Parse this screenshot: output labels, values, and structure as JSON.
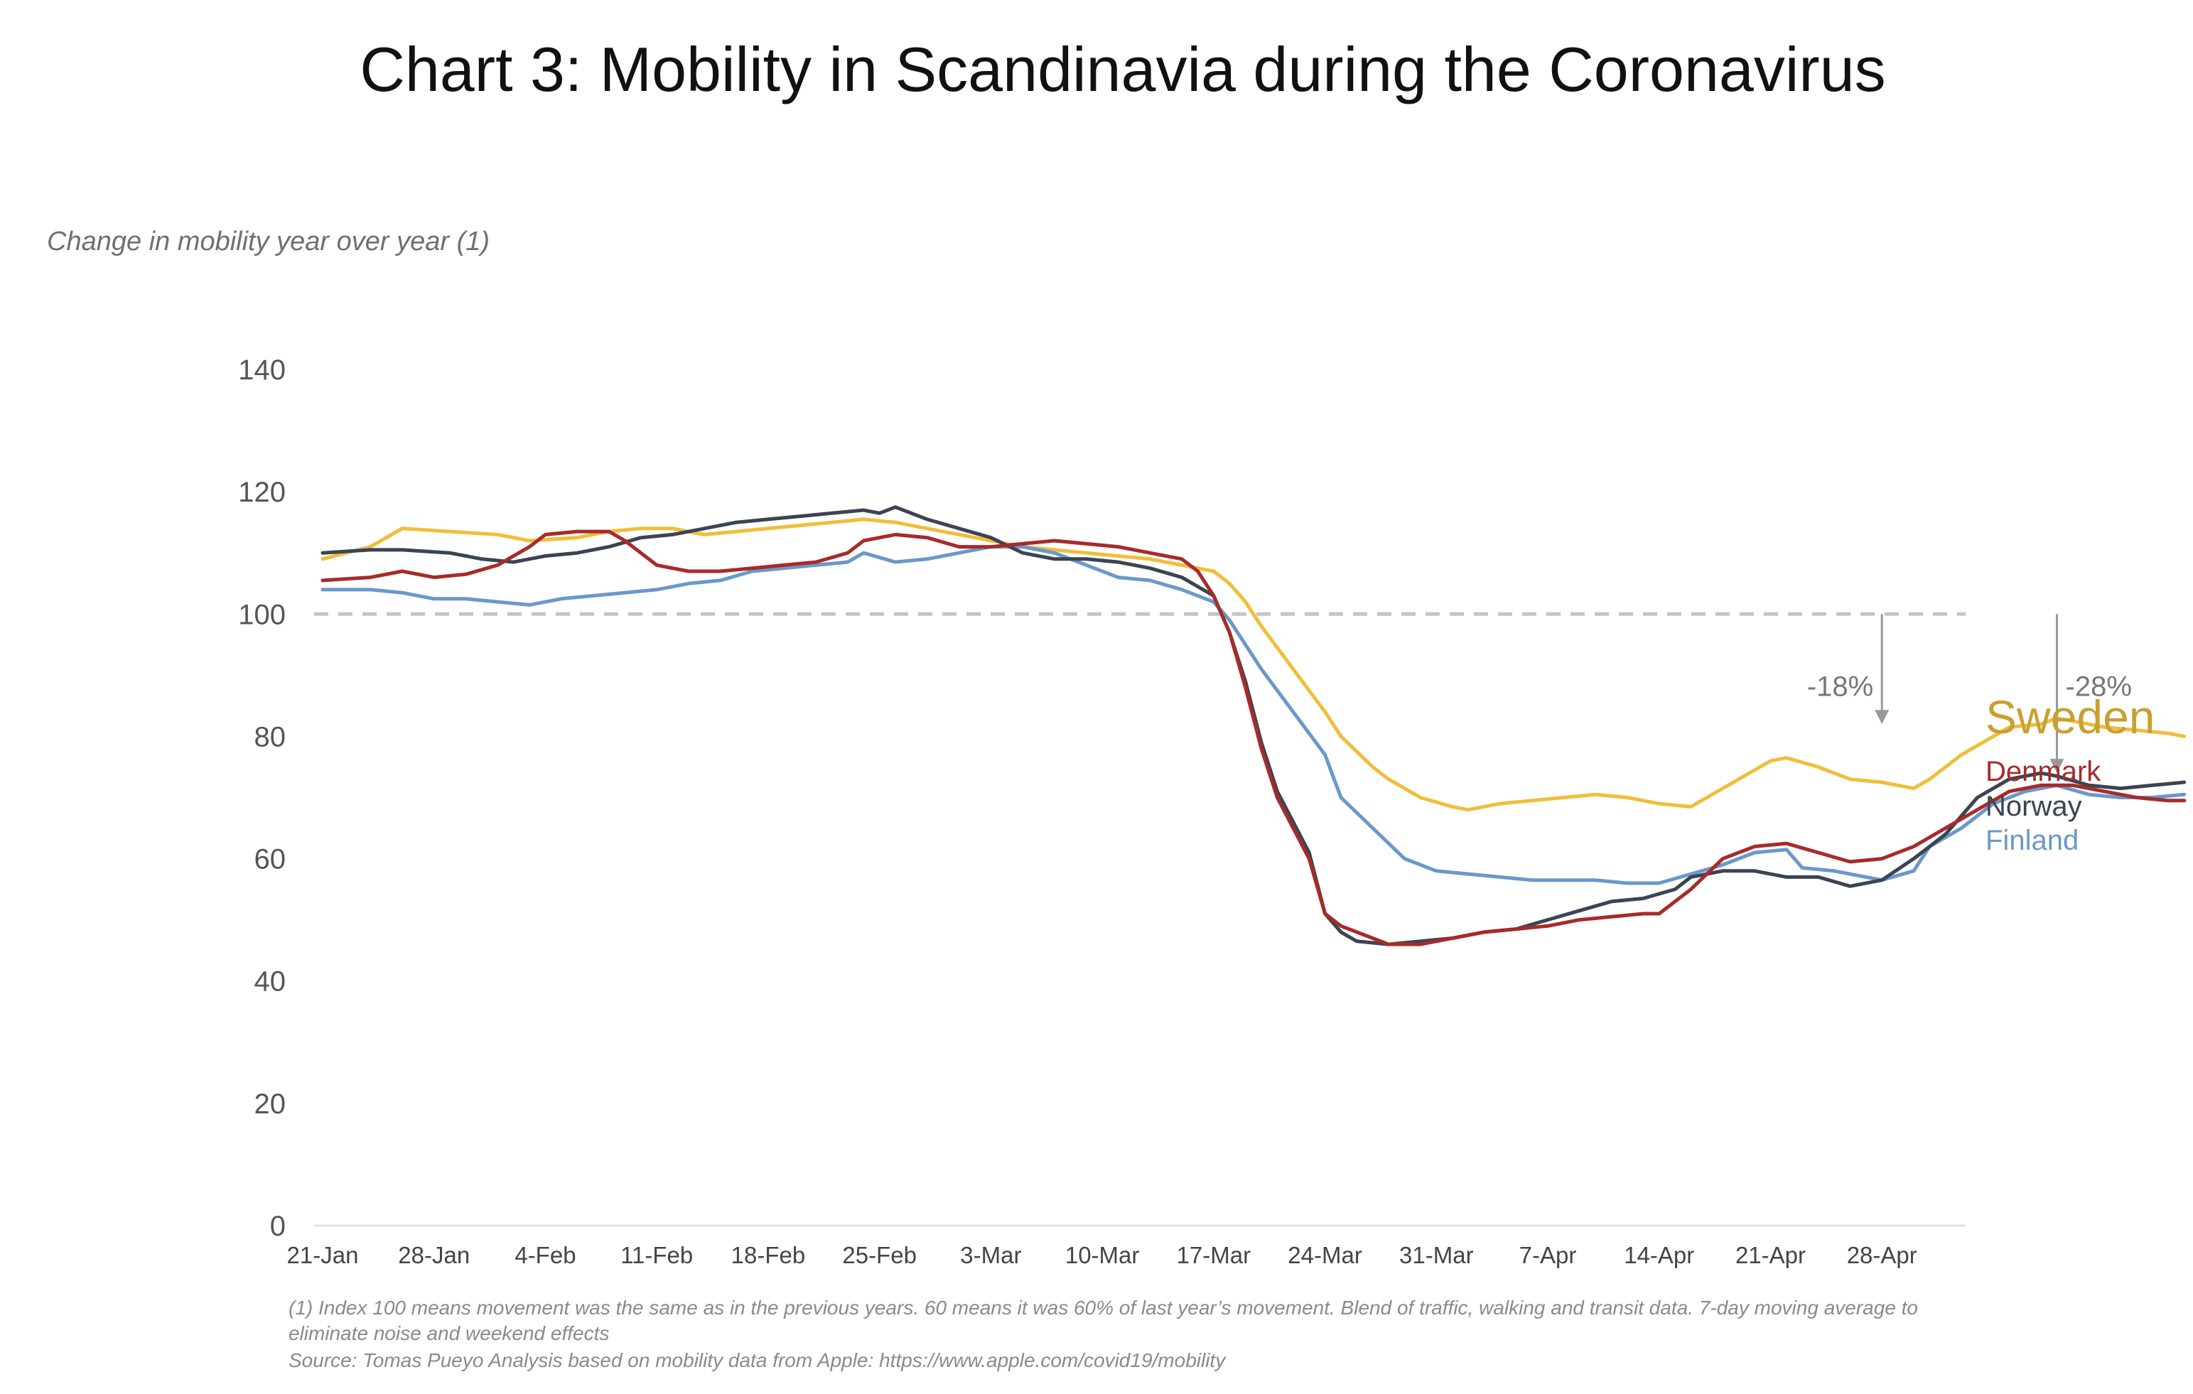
{
  "chart_data": {
    "type": "line",
    "title": "Chart 3: Mobility in Scandinavia during the Coronavirus",
    "ylabel": "Change in mobility year over year (1)",
    "xlabel": "",
    "ylim": [
      0,
      140
    ],
    "yticks": [
      "0",
      "20",
      "40",
      "60",
      "80",
      "100",
      "120",
      "140"
    ],
    "xticks": [
      "21-Jan",
      "28-Jan",
      "4-Feb",
      "11-Feb",
      "18-Feb",
      "25-Feb",
      "3-Mar",
      "10-Mar",
      "17-Mar",
      "24-Mar",
      "31-Mar",
      "7-Apr",
      "14-Apr",
      "21-Apr",
      "28-Apr"
    ],
    "x_range_days": [
      0,
      104
    ],
    "reference_line": 100,
    "series": [
      {
        "name": "Sweden",
        "color": "#F0BE3A",
        "label_color": "#C9A030",
        "points": [
          [
            0,
            109
          ],
          [
            3,
            111
          ],
          [
            5,
            114
          ],
          [
            8,
            113.5
          ],
          [
            11,
            113
          ],
          [
            13,
            112
          ],
          [
            16,
            112.5
          ],
          [
            18,
            113.5
          ],
          [
            20,
            114
          ],
          [
            22,
            114
          ],
          [
            24,
            113
          ],
          [
            26,
            113.5
          ],
          [
            28,
            114
          ],
          [
            30,
            114.5
          ],
          [
            32,
            115
          ],
          [
            34,
            115.5
          ],
          [
            36,
            115
          ],
          [
            38,
            114
          ],
          [
            40,
            113
          ],
          [
            42,
            112
          ],
          [
            44,
            111
          ],
          [
            46,
            110.5
          ],
          [
            48,
            110
          ],
          [
            50,
            109.5
          ],
          [
            52,
            109
          ],
          [
            54,
            108
          ],
          [
            56,
            107
          ],
          [
            57,
            105
          ],
          [
            58,
            102
          ],
          [
            59,
            98
          ],
          [
            61,
            91
          ],
          [
            63,
            84
          ],
          [
            64,
            80
          ],
          [
            66,
            75
          ],
          [
            67,
            73
          ],
          [
            69,
            70
          ],
          [
            71,
            68.5
          ],
          [
            72,
            68
          ],
          [
            74,
            69
          ],
          [
            76,
            69.5
          ],
          [
            78,
            70
          ],
          [
            80,
            70.5
          ],
          [
            82,
            70
          ],
          [
            84,
            69
          ],
          [
            86,
            68.5
          ],
          [
            87,
            70
          ],
          [
            89,
            73
          ],
          [
            91,
            76
          ],
          [
            92,
            76.5
          ],
          [
            94,
            75
          ],
          [
            96,
            73
          ],
          [
            98,
            72.5
          ],
          [
            100,
            71.5
          ],
          [
            101,
            73
          ],
          [
            103,
            77
          ],
          [
            105,
            80
          ],
          [
            106,
            81.5
          ],
          [
            108,
            82
          ],
          [
            109,
            83
          ],
          [
            110,
            82.5
          ],
          [
            112,
            81.5
          ],
          [
            114,
            81
          ],
          [
            116,
            80.5
          ],
          [
            117,
            80
          ]
        ]
      },
      {
        "name": "Denmark",
        "color": "#A82A2A",
        "label_color": "#A82A2A",
        "points": [
          [
            0,
            105.5
          ],
          [
            3,
            106
          ],
          [
            5,
            107
          ],
          [
            7,
            106
          ],
          [
            9,
            106.5
          ],
          [
            11,
            108
          ],
          [
            13,
            111
          ],
          [
            14,
            113
          ],
          [
            16,
            113.5
          ],
          [
            18,
            113.5
          ],
          [
            19,
            112
          ],
          [
            21,
            108
          ],
          [
            23,
            107
          ],
          [
            25,
            107
          ],
          [
            27,
            107.5
          ],
          [
            29,
            108
          ],
          [
            31,
            108.5
          ],
          [
            33,
            110
          ],
          [
            34,
            112
          ],
          [
            36,
            113
          ],
          [
            38,
            112.5
          ],
          [
            40,
            111
          ],
          [
            42,
            111
          ],
          [
            44,
            111.5
          ],
          [
            46,
            112
          ],
          [
            48,
            111.5
          ],
          [
            50,
            111
          ],
          [
            52,
            110
          ],
          [
            54,
            109
          ],
          [
            55,
            107
          ],
          [
            56,
            103
          ],
          [
            57,
            97
          ],
          [
            58,
            88
          ],
          [
            59,
            78
          ],
          [
            60,
            70
          ],
          [
            62,
            60
          ],
          [
            63,
            51
          ],
          [
            64,
            49
          ],
          [
            66,
            47
          ],
          [
            67,
            46
          ],
          [
            69,
            46
          ],
          [
            71,
            47
          ],
          [
            73,
            48
          ],
          [
            75,
            48.5
          ],
          [
            77,
            49
          ],
          [
            79,
            50
          ],
          [
            81,
            50.5
          ],
          [
            83,
            51
          ],
          [
            84,
            51
          ],
          [
            86,
            55
          ],
          [
            88,
            60
          ],
          [
            90,
            62
          ],
          [
            92,
            62.5
          ],
          [
            94,
            61
          ],
          [
            96,
            59.5
          ],
          [
            98,
            60
          ],
          [
            100,
            62
          ],
          [
            102,
            65
          ],
          [
            104,
            68
          ],
          [
            106,
            71
          ],
          [
            108,
            72
          ],
          [
            110,
            72
          ],
          [
            112,
            71
          ],
          [
            114,
            70
          ],
          [
            116,
            69.5
          ],
          [
            117,
            69.5
          ]
        ]
      },
      {
        "name": "Norway",
        "color": "#3B4452",
        "label_color": "#3B4452",
        "points": [
          [
            0,
            110
          ],
          [
            3,
            110.5
          ],
          [
            5,
            110.5
          ],
          [
            8,
            110
          ],
          [
            10,
            109
          ],
          [
            12,
            108.5
          ],
          [
            14,
            109.5
          ],
          [
            16,
            110
          ],
          [
            18,
            111
          ],
          [
            20,
            112.5
          ],
          [
            22,
            113
          ],
          [
            24,
            114
          ],
          [
            26,
            115
          ],
          [
            28,
            115.5
          ],
          [
            30,
            116
          ],
          [
            32,
            116.5
          ],
          [
            34,
            117
          ],
          [
            35,
            116.5
          ],
          [
            36,
            117.5
          ],
          [
            38,
            115.5
          ],
          [
            40,
            114
          ],
          [
            42,
            112.5
          ],
          [
            44,
            110
          ],
          [
            46,
            109
          ],
          [
            48,
            109
          ],
          [
            50,
            108.5
          ],
          [
            52,
            107.5
          ],
          [
            54,
            106
          ],
          [
            56,
            103
          ],
          [
            57,
            97
          ],
          [
            58,
            89
          ],
          [
            59,
            79
          ],
          [
            60,
            71
          ],
          [
            62,
            61
          ],
          [
            63,
            51
          ],
          [
            64,
            48
          ],
          [
            65,
            46.5
          ],
          [
            67,
            46
          ],
          [
            69,
            46.5
          ],
          [
            71,
            47
          ],
          [
            73,
            48
          ],
          [
            75,
            48.5
          ],
          [
            77,
            50
          ],
          [
            79,
            51.5
          ],
          [
            81,
            53
          ],
          [
            83,
            53.5
          ],
          [
            85,
            55
          ],
          [
            86,
            57
          ],
          [
            88,
            58
          ],
          [
            90,
            58
          ],
          [
            92,
            57
          ],
          [
            94,
            57
          ],
          [
            96,
            55.5
          ],
          [
            98,
            56.5
          ],
          [
            100,
            60
          ],
          [
            102,
            64
          ],
          [
            104,
            70
          ],
          [
            106,
            73
          ],
          [
            108,
            74
          ],
          [
            109,
            73.5
          ],
          [
            111,
            72
          ],
          [
            113,
            71.5
          ],
          [
            115,
            72
          ],
          [
            117,
            72.5
          ]
        ]
      },
      {
        "name": "Finland",
        "color": "#6A98CA",
        "label_color": "#6A98CA",
        "points": [
          [
            0,
            104
          ],
          [
            3,
            104
          ],
          [
            5,
            103.5
          ],
          [
            7,
            102.5
          ],
          [
            9,
            102.5
          ],
          [
            11,
            102
          ],
          [
            13,
            101.5
          ],
          [
            15,
            102.5
          ],
          [
            17,
            103
          ],
          [
            19,
            103.5
          ],
          [
            21,
            104
          ],
          [
            23,
            105
          ],
          [
            25,
            105.5
          ],
          [
            27,
            107
          ],
          [
            29,
            107.5
          ],
          [
            31,
            108
          ],
          [
            33,
            108.5
          ],
          [
            34,
            110
          ],
          [
            36,
            108.5
          ],
          [
            38,
            109
          ],
          [
            40,
            110
          ],
          [
            42,
            111
          ],
          [
            44,
            111
          ],
          [
            46,
            110
          ],
          [
            48,
            108
          ],
          [
            50,
            106
          ],
          [
            52,
            105.5
          ],
          [
            54,
            104
          ],
          [
            56,
            102
          ],
          [
            57,
            99
          ],
          [
            59,
            91
          ],
          [
            61,
            84
          ],
          [
            63,
            77
          ],
          [
            64,
            70
          ],
          [
            66,
            65
          ],
          [
            68,
            60
          ],
          [
            70,
            58
          ],
          [
            72,
            57.5
          ],
          [
            74,
            57
          ],
          [
            76,
            56.5
          ],
          [
            78,
            56.5
          ],
          [
            80,
            56.5
          ],
          [
            82,
            56
          ],
          [
            84,
            56
          ],
          [
            86,
            57.5
          ],
          [
            88,
            59
          ],
          [
            90,
            61
          ],
          [
            92,
            61.5
          ],
          [
            93,
            58.5
          ],
          [
            95,
            58
          ],
          [
            97,
            57
          ],
          [
            98,
            56.5
          ],
          [
            100,
            58
          ],
          [
            101,
            62
          ],
          [
            103,
            65
          ],
          [
            105,
            69
          ],
          [
            107,
            71
          ],
          [
            109,
            72
          ],
          [
            111,
            70.5
          ],
          [
            113,
            70
          ],
          [
            115,
            70
          ],
          [
            117,
            70.5
          ]
        ]
      }
    ],
    "annotations": [
      {
        "text": "-18%",
        "day": 98,
        "from": 100,
        "to": 82
      },
      {
        "text": "-28%",
        "day": 109,
        "from": 100,
        "to": 74
      }
    ],
    "footnotes": [
      "(1) Index 100 means movement was the same as in the previous years. 60 means it was 60% of last year’s movement. Blend of traffic, walking and transit data. 7-day moving average to",
      "eliminate noise and weekend effects",
      "Source: Tomas Pueyo Analysis based on mobility data from Apple: https://www.apple.com/covid19/mobility"
    ]
  }
}
